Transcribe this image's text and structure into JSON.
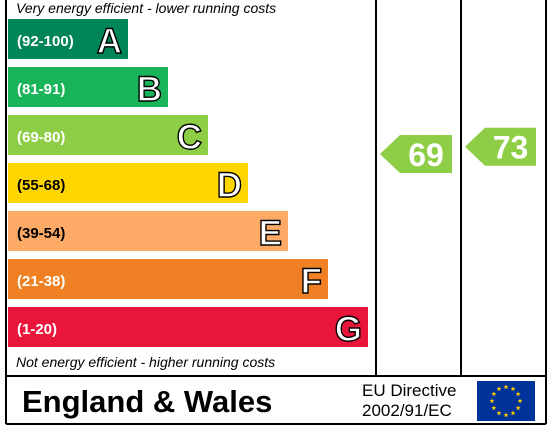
{
  "chart_data": {
    "type": "bar",
    "top_note": "Very energy efficient - lower running costs",
    "bottom_note": "Not energy efficient - higher running costs",
    "bands": [
      {
        "letter": "A",
        "range": "(92-100)",
        "min": 92,
        "max": 100,
        "color": "#00845a"
      },
      {
        "letter": "B",
        "range": "(81-91)",
        "min": 81,
        "max": 91,
        "color": "#19b459"
      },
      {
        "letter": "C",
        "range": "(69-80)",
        "min": 69,
        "max": 80,
        "color": "#8dce46"
      },
      {
        "letter": "D",
        "range": "(55-68)",
        "min": 55,
        "max": 68,
        "color": "#ffd500"
      },
      {
        "letter": "E",
        "range": "(39-54)",
        "min": 39,
        "max": 54,
        "color": "#fcaa65"
      },
      {
        "letter": "F",
        "range": "(21-38)",
        "min": 21,
        "max": 38,
        "color": "#ef8023"
      },
      {
        "letter": "G",
        "range": "(1-20)",
        "min": 1,
        "max": 20,
        "color": "#e9153b"
      }
    ],
    "series": [
      {
        "value": 69,
        "color": "#8dce46"
      },
      {
        "value": 73,
        "color": "#8dce46"
      }
    ]
  },
  "footer": {
    "region": "England & Wales",
    "directive_line1": "EU Directive",
    "directive_line2": "2002/91/EC"
  },
  "colors": {
    "flag_blue": "#003399",
    "flag_star": "#ffcc00"
  }
}
